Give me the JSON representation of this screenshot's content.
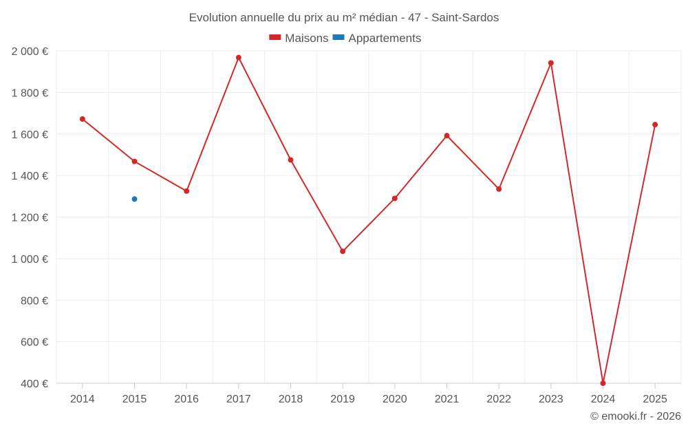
{
  "chart_data": {
    "type": "line",
    "title": "Evolution annuelle du prix au m² médian - 47 - Saint-Sardos",
    "categories": [
      "2014",
      "2015",
      "2016",
      "2017",
      "2018",
      "2019",
      "2020",
      "2021",
      "2022",
      "2023",
      "2024",
      "2025"
    ],
    "series": [
      {
        "name": "Maisons",
        "color": "#d62728",
        "values": [
          1672,
          1468,
          1325,
          1968,
          1475,
          1035,
          1290,
          1592,
          1335,
          1942,
          400,
          1645
        ]
      },
      {
        "name": "Appartements",
        "color": "#1f77b4",
        "values": [
          null,
          1287,
          null,
          null,
          null,
          null,
          null,
          null,
          null,
          null,
          null,
          null
        ]
      }
    ],
    "ylim": [
      400,
      2000
    ],
    "yticks": [
      400,
      600,
      800,
      1000,
      1200,
      1400,
      1600,
      1800,
      2000
    ],
    "ytick_labels": [
      "400 €",
      "600 €",
      "800 €",
      "1 000 €",
      "1 200 €",
      "1 400 €",
      "1 600 €",
      "1 800 €",
      "2 000 €"
    ],
    "xlabel": "",
    "ylabel": "",
    "grid": true,
    "legend_position": "top-center",
    "credit": "© emooki.fr - 2026"
  }
}
